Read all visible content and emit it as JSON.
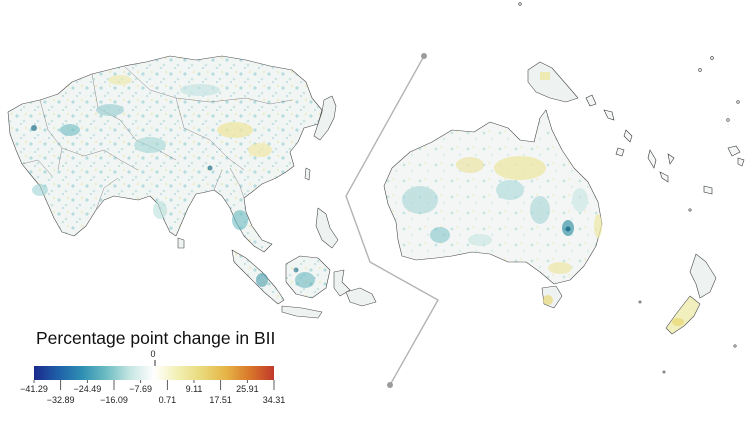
{
  "legend": {
    "title": "Percentage point change in BII",
    "zero_label": "0",
    "ticks_top": [
      "−41.29",
      "−24.49",
      "−7.69",
      "9.11",
      "25.91"
    ],
    "ticks_bottom": [
      "−32.89",
      "−16.09",
      "0.71",
      "17.51",
      "34.31"
    ],
    "range": [
      -41.29,
      34.31
    ],
    "gradient_colors": [
      "#1b2a8c",
      "#1f5fa8",
      "#2f8fb3",
      "#6cbcc2",
      "#c6e6e2",
      "#ffffff",
      "#f2efb2",
      "#e9d97a",
      "#e6b446",
      "#d9772a",
      "#c0392b"
    ]
  },
  "regions": [
    "Asia",
    "Australia",
    "New Zealand",
    "Papua New Guinea",
    "Pacific islands"
  ],
  "colors": {
    "negative_strong": "#1b6f8a",
    "negative_light": "#a9d9d8",
    "neutral": "#f3f6f5",
    "positive_light": "#efe9a6",
    "divider": "#b3b3b3"
  }
}
